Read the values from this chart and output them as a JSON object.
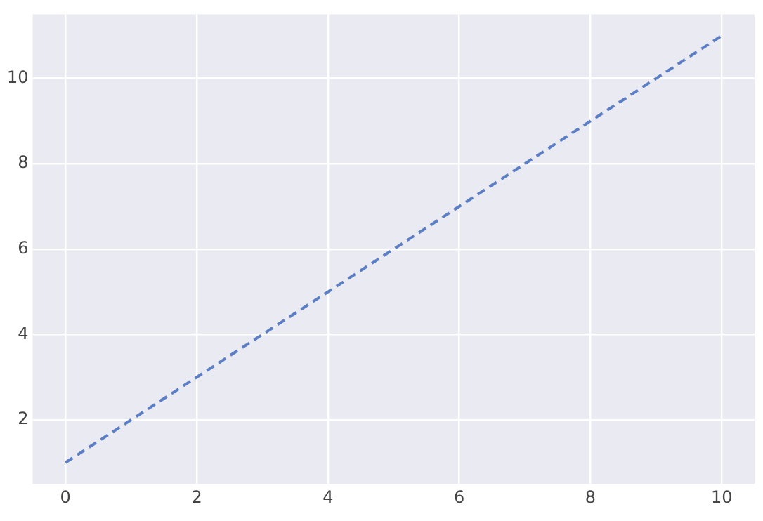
{
  "chart_data": {
    "type": "line",
    "x": [
      0,
      1,
      2,
      3,
      4,
      5,
      6,
      7,
      8,
      9,
      10
    ],
    "series": [
      {
        "color": "#5b7ec4",
        "values": [
          1,
          2,
          3,
          4,
          5,
          6,
          7,
          8,
          9,
          10,
          11
        ]
      }
    ],
    "xlim": [
      -0.5,
      10.5
    ],
    "xticks": [
      0,
      2,
      4,
      6,
      8,
      10
    ],
    "ylim": [
      0.5,
      11.5
    ],
    "yticks": [
      2,
      4,
      6,
      8,
      10
    ],
    "grid": true,
    "legend": false,
    "marker": "none",
    "line_style": "dashed"
  }
}
